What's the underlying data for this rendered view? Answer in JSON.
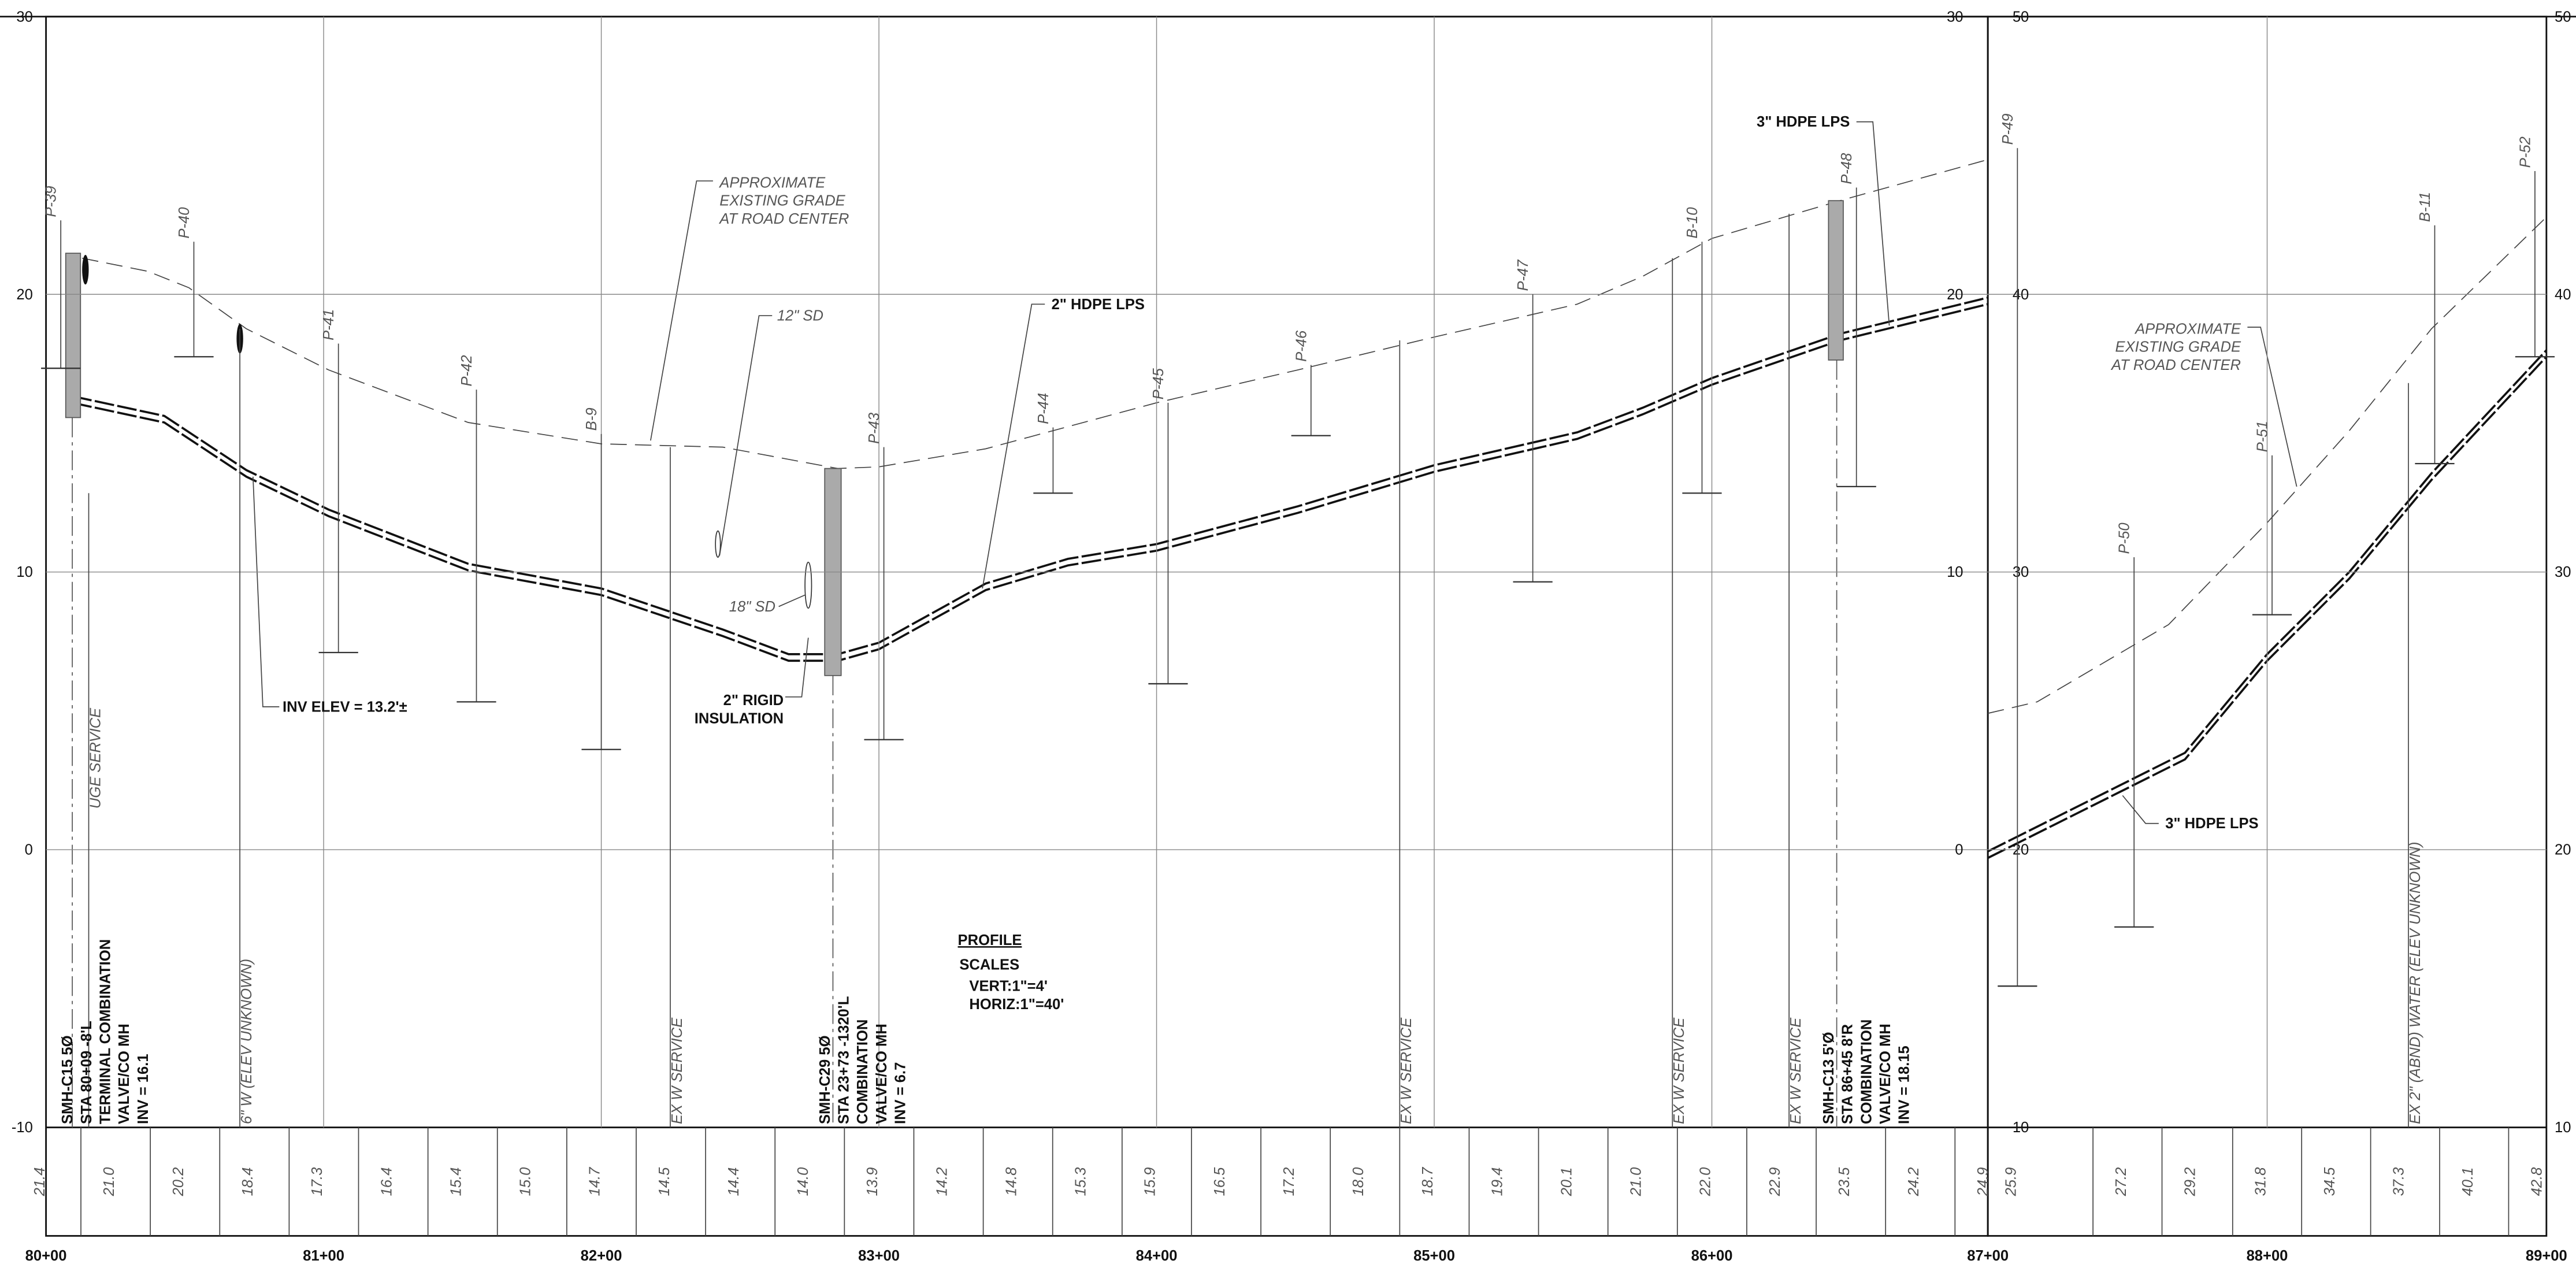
{
  "left_axis": [
    "30",
    "20",
    "10",
    "0",
    "-10"
  ],
  "mid_axis_left": [
    "30",
    "20",
    "10",
    "0"
  ],
  "mid_axis_right": [
    "50",
    "40",
    "30",
    "20",
    "10"
  ],
  "right_axis": [
    "50",
    "40",
    "30",
    "20",
    "10"
  ],
  "stations": [
    "80+00",
    "81+00",
    "82+00",
    "83+00",
    "84+00",
    "85+00",
    "86+00",
    "87+00",
    "88+00",
    "89+00"
  ],
  "grade_elevations": {
    "panel_1": [
      "21.4",
      "21.0",
      "20.2",
      "18.4",
      "17.3",
      "16.4",
      "15.4",
      "15.0",
      "14.7",
      "14.5",
      "14.4",
      "14.0",
      "13.9",
      "14.2",
      "14.8",
      "15.3",
      "15.9",
      "16.5",
      "17.2",
      "18.0",
      "18.7",
      "19.4",
      "20.1",
      "21.0",
      "22.0",
      "22.9",
      "23.5",
      "24.2",
      "24.9"
    ],
    "panel_2": [
      "25.9",
      "27.2",
      "29.2",
      "31.8",
      "34.5",
      "37.3",
      "40.1",
      "42.8"
    ]
  },
  "borings": [
    "P-39",
    "P-40",
    "P-41",
    "P-42",
    "B-9",
    "P-43",
    "P-44",
    "P-45",
    "P-46",
    "P-47",
    "B-10",
    "P-48",
    "P-49",
    "P-50",
    "P-51",
    "B-11",
    "P-52"
  ],
  "services": [
    "UGE SERVICE",
    "6\" W (ELEV UNKNOWN)",
    "EX W SERVICE",
    "EX W SERVICE",
    "EX W SERVICE",
    "EX W SERVICE",
    "EX 2\" (ABND) WATER (ELEV UNKNOWN)"
  ],
  "manholes": [
    {
      "lines": [
        "SMH-C15 5Ø",
        "STA 80+09 -8'L",
        "TERMINAL COMBINATION",
        "VALVE/CO MH",
        "INV = 16.1"
      ]
    },
    {
      "lines": [
        "SMH-C29 5Ø",
        "STA 23+73 -1320'L",
        "COMBINATION",
        "VALVE/CO MH",
        "INV = 6.7"
      ]
    },
    {
      "lines": [
        "SMH-C13 5'Ø",
        "STA 86+45 8'R",
        "COMBINATION",
        "VALVE/CO MH",
        "INV = 18.15"
      ]
    }
  ],
  "annotations": {
    "grade_note_1": [
      "APPROXIMATE",
      "EXISTING GRADE",
      "AT ROAD CENTER"
    ],
    "grade_note_2": [
      "APPROXIMATE",
      "EXISTING GRADE",
      "AT ROAD CENTER"
    ],
    "sd_12": "12\" SD",
    "sd_18": "18\" SD",
    "hdpe_2": "2\" HDPE LPS",
    "hdpe_3_top": "3\" HDPE LPS",
    "hdpe_3_panel2": "3\" HDPE LPS",
    "inv_elev": "INV ELEV = 13.2'±",
    "insulation": [
      "2\" RIGID",
      "INSULATION"
    ]
  },
  "title": {
    "heading": "PROFILE",
    "scales": "SCALES",
    "vert": "VERT:1\"=4'",
    "horiz": "HORIZ:1\"=40'"
  }
}
